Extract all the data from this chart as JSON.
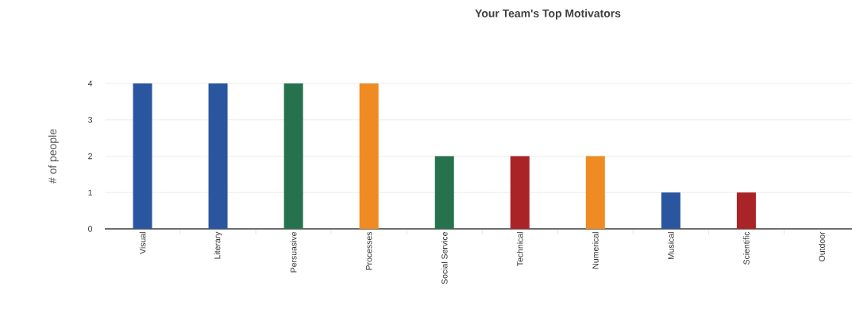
{
  "chart_data": {
    "type": "bar",
    "title": "Your Team's Top Motivators",
    "ylabel": "# of people",
    "categories": [
      "Visual",
      "Literary",
      "Persuasive",
      "Processes",
      "Social Service",
      "Technical",
      "Numerical",
      "Musical",
      "Scientific",
      "Outdoor"
    ],
    "values": [
      4,
      4,
      4,
      4,
      2,
      2,
      2,
      1,
      1,
      0
    ],
    "colors": [
      "#2a56a0",
      "#2a56a0",
      "#26724f",
      "#ef8b22",
      "#26724f",
      "#aa2327",
      "#ef8b22",
      "#2a56a0",
      "#aa2327",
      "#aa2327"
    ],
    "ylim": [
      0,
      4
    ],
    "yticks": [
      0,
      1,
      2,
      3,
      4
    ],
    "grid": "y"
  }
}
